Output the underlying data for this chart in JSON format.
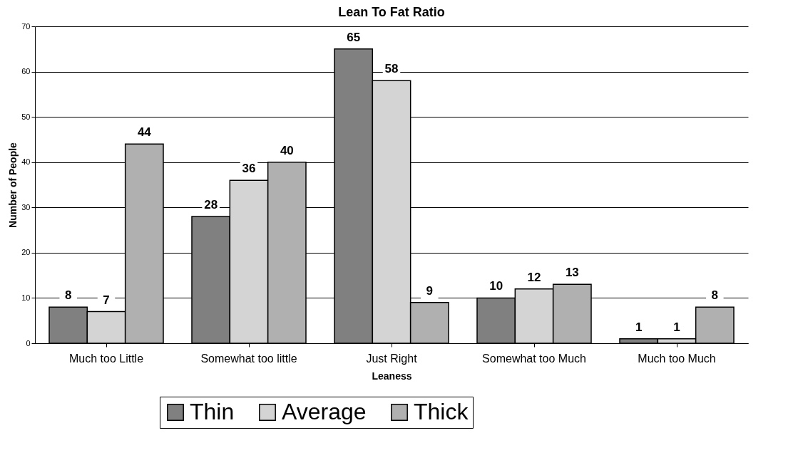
{
  "chart_data": {
    "type": "bar",
    "title": "Lean To Fat Ratio",
    "xlabel": "Leaness",
    "ylabel": "Number of People",
    "categories": [
      "Much too Little",
      "Somewhat too little",
      "Just Right",
      "Somewhat too Much",
      "Much too Much"
    ],
    "series": [
      {
        "name": "Thin",
        "color": "#808080",
        "values": [
          8,
          28,
          65,
          10,
          1
        ]
      },
      {
        "name": "Average",
        "color": "#d4d4d4",
        "values": [
          7,
          36,
          58,
          12,
          1
        ]
      },
      {
        "name": "Thick",
        "color": "#b0b0b0",
        "values": [
          44,
          40,
          9,
          13,
          8
        ]
      }
    ],
    "ylim": [
      0,
      70
    ],
    "yticks": [
      0,
      10,
      20,
      30,
      40,
      50,
      60,
      70
    ],
    "grid": "y",
    "legend": "bottom",
    "data_labels": true
  }
}
